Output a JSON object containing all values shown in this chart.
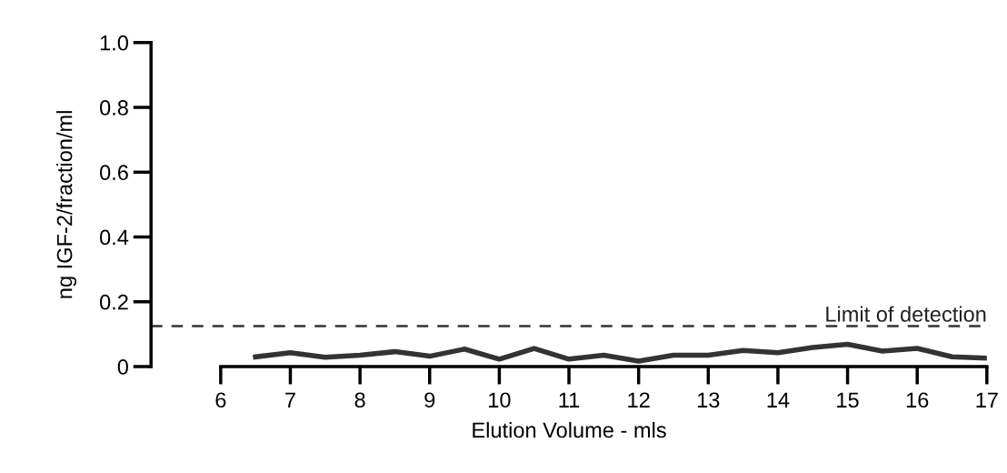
{
  "chart_data": {
    "type": "line",
    "xlabel": "Elution Volume - mls",
    "ylabel": "ng IGF-2/fraction/ml",
    "x": [
      6.5,
      7,
      7.5,
      8,
      8.5,
      9,
      9.5,
      10,
      10.5,
      11,
      11.5,
      12,
      12.5,
      13,
      13.5,
      14,
      14.5,
      15,
      15.5,
      16,
      16.5,
      17
    ],
    "series": [
      {
        "color": "#333333",
        "values": [
          0.03,
          0.043,
          0.029,
          0.035,
          0.046,
          0.032,
          0.054,
          0.023,
          0.056,
          0.023,
          0.035,
          0.017,
          0.035,
          0.035,
          0.05,
          0.043,
          0.059,
          0.069,
          0.048,
          0.056,
          0.03,
          0.026
        ]
      }
    ],
    "xlim": [
      5,
      17
    ],
    "xticks": [
      6,
      7,
      8,
      9,
      10,
      11,
      12,
      13,
      14,
      15,
      16,
      17
    ],
    "ylim": [
      0,
      1.0
    ],
    "yticks": [
      {
        "value": 0,
        "label": "0"
      },
      0.2,
      0.4,
      0.6,
      0.8,
      {
        "value": 1.0,
        "label": "1.0"
      }
    ],
    "ref_lines": [
      {
        "axis": "y",
        "value": 0.125,
        "label": "Limit of detection",
        "color": "#333333",
        "line_style": "dashed"
      }
    ],
    "grid": false,
    "legend": false,
    "marker": "none",
    "line_style": "solid"
  }
}
